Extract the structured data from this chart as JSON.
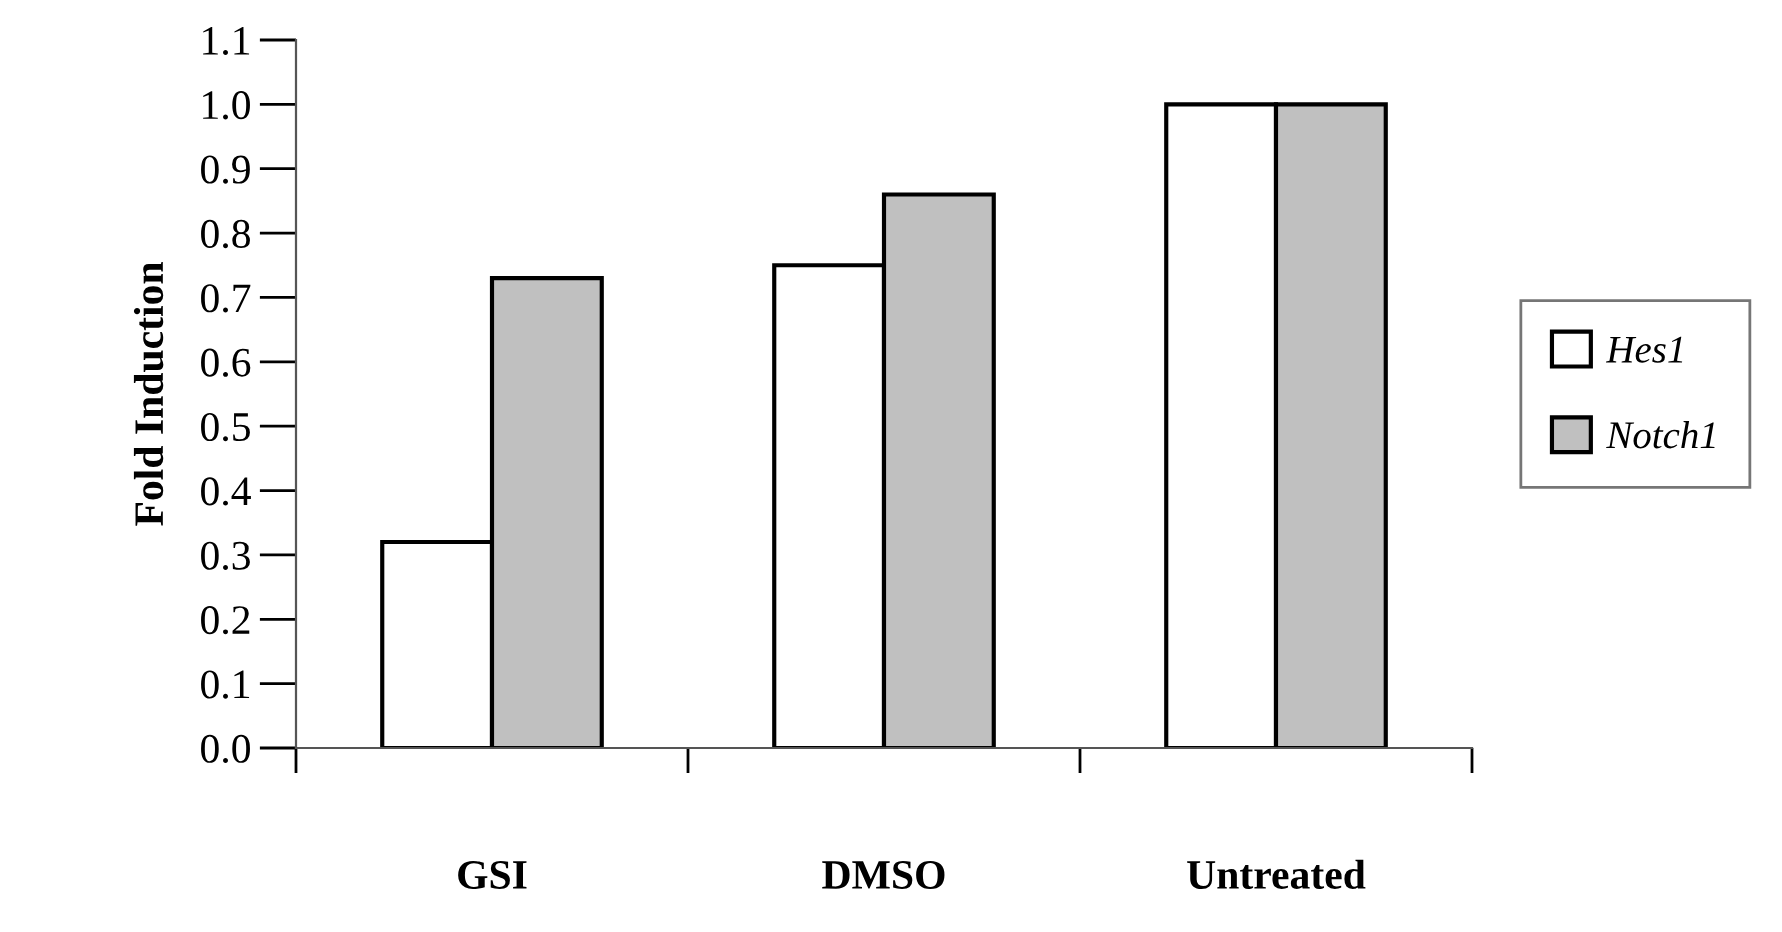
{
  "chart_data": {
    "type": "bar",
    "ylabel": "Fold Induction",
    "categories": [
      "GSI",
      "DMSO",
      "Untreated"
    ],
    "series": [
      {
        "name": "Hes1",
        "color": "#ffffff",
        "values": [
          0.32,
          0.75,
          1.0
        ]
      },
      {
        "name": "Notch1",
        "color": "#c0c0c0",
        "values": [
          0.73,
          0.86,
          1.0
        ]
      }
    ],
    "ylim": [
      0,
      1.1
    ],
    "yticks": [
      {
        "value": 0,
        "label": "0.0"
      },
      {
        "value": 0.1,
        "label": "0.1"
      },
      {
        "value": 0.2,
        "label": "0.2"
      },
      {
        "value": 0.3,
        "label": "0.3"
      },
      {
        "value": 0.4,
        "label": "0.4"
      },
      {
        "value": 0.5,
        "label": "0.5"
      },
      {
        "value": 0.6,
        "label": "0.6"
      },
      {
        "value": 0.7,
        "label": "0.7"
      },
      {
        "value": 0.8,
        "label": "0.8"
      },
      {
        "value": 0.9,
        "label": "0.9"
      },
      {
        "value": 1.0,
        "label": "1.0"
      },
      {
        "value": 1.1,
        "label": "1.1"
      }
    ],
    "grid": false,
    "legend": "right"
  }
}
